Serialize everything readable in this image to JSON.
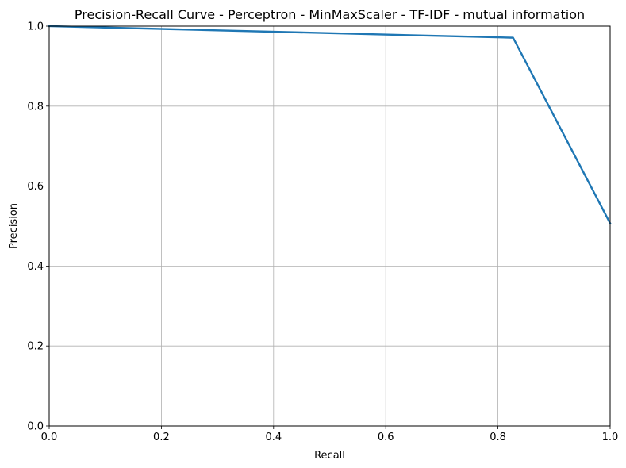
{
  "chart_data": {
    "type": "line",
    "title": "Precision-Recall Curve - Perceptron - MinMaxScaler - TF-IDF - mutual information",
    "xlabel": "Recall",
    "ylabel": "Precision",
    "xlim": [
      0,
      1
    ],
    "ylim": [
      0,
      1
    ],
    "x_ticks": [
      "0.0",
      "0.2",
      "0.4",
      "0.6",
      "0.8",
      "1.0"
    ],
    "y_ticks": [
      "0.0",
      "0.2",
      "0.4",
      "0.6",
      "0.8",
      "1.0"
    ],
    "grid": true,
    "series": [
      {
        "color": "#1f77b4",
        "x": [
          0.0,
          0.827,
          1.0
        ],
        "y": [
          1.0,
          0.971,
          0.507
        ]
      }
    ]
  }
}
